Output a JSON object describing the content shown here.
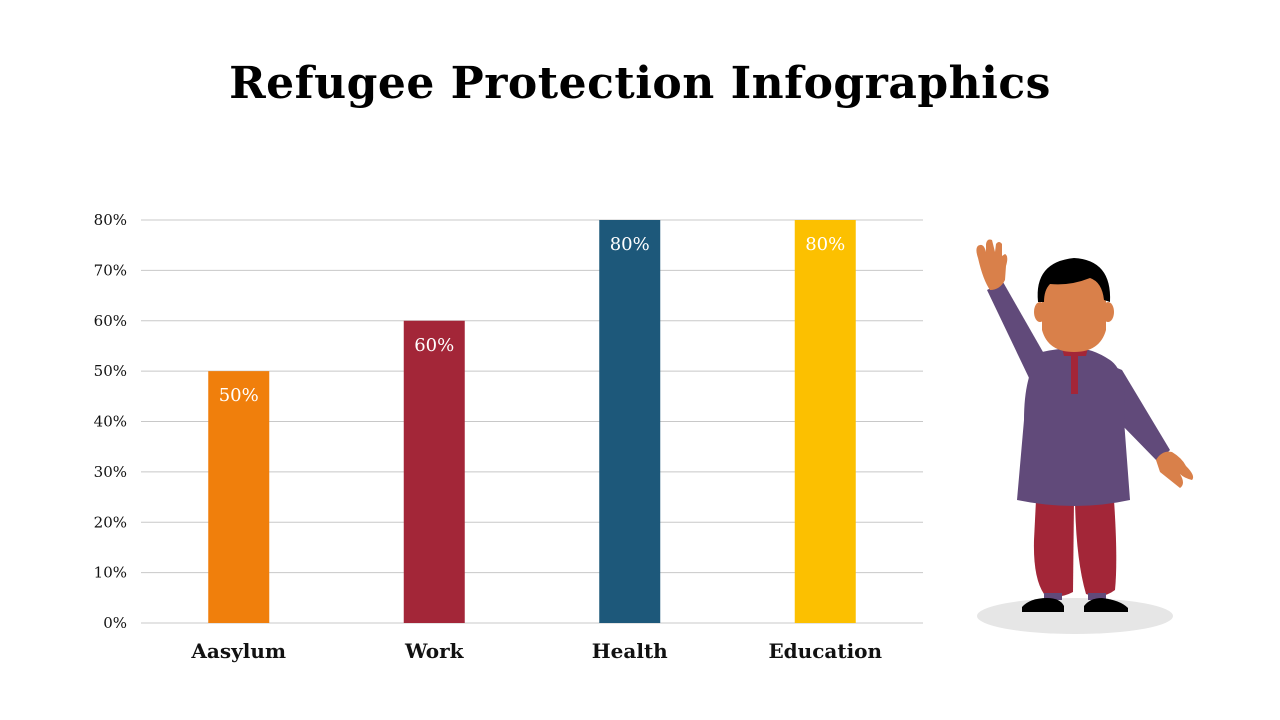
{
  "title": "Refugee Protection Infographics",
  "chart_data": {
    "type": "bar",
    "categories": [
      "Aasylum",
      "Work",
      "Health",
      "Education"
    ],
    "values": [
      50,
      60,
      80,
      80
    ],
    "data_labels": [
      "50%",
      "60%",
      "80%",
      "80%"
    ],
    "colors": [
      "#f07f0c",
      "#a32638",
      "#1d587a",
      "#fcc000"
    ],
    "ylim": [
      0,
      80
    ],
    "y_ticks": [
      0,
      10,
      20,
      30,
      40,
      50,
      60,
      70,
      80
    ],
    "y_tick_labels": [
      "0%",
      "10%",
      "20%",
      "30%",
      "40%",
      "50%",
      "60%",
      "70%",
      "80%"
    ],
    "grid": true,
    "legend": "none"
  },
  "illustration": {
    "icon": "waving-person-icon",
    "colors": {
      "shirt": "#614a7a",
      "pants": "#a32638",
      "skin": "#d9804a",
      "hair": "#000000"
    }
  }
}
